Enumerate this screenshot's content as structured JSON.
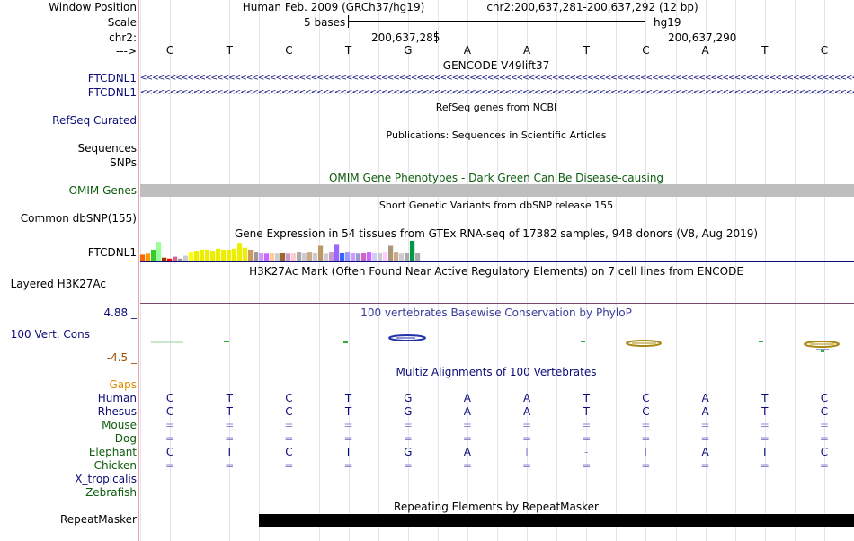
{
  "window_position": {
    "label": "Window Position",
    "assembly": "Human Feb. 2009 (GRCh37/hg19)",
    "range": "chr2:200,637,281-200,637,292 (12 bp)"
  },
  "scale": {
    "label": "Scale",
    "bases_label": "5 bases",
    "db": "hg19"
  },
  "chrom": {
    "label": "chr2:",
    "pos1": "200,637,285",
    "pos2": "200,637,290"
  },
  "strand_label": "--->",
  "bases": [
    "C",
    "T",
    "C",
    "T",
    "G",
    "A",
    "A",
    "T",
    "C",
    "A",
    "T",
    "C"
  ],
  "gencode": {
    "title": "GENCODE V49lift37",
    "tracks": [
      "FTCDNL1",
      "FTCDNL1"
    ],
    "arrow_glyph": "<"
  },
  "refseq": {
    "label": "RefSeq Curated",
    "title": "RefSeq genes from NCBI"
  },
  "publications": {
    "title": "Publications: Sequences in Scientific Articles",
    "label": "Sequences"
  },
  "snps": {
    "label": "SNPs"
  },
  "omim": {
    "title": "OMIM Gene Phenotypes - Dark Green Can Be Disease-causing",
    "label": "OMIM Genes"
  },
  "dbsnp": {
    "title": "Short Genetic Variants from dbSNP release 155",
    "label": "Common dbSNP(155)"
  },
  "gtex": {
    "title": "Gene Expression in 54 tissues from GTEx RNA-seq of 17382 samples, 948 donors (V8, Aug 2019)",
    "label": "FTCDNL1",
    "bars": [
      {
        "v": 0.3,
        "c": "#ff6600"
      },
      {
        "v": 0.35,
        "c": "#ff9900"
      },
      {
        "v": 0.55,
        "c": "#33cc33"
      },
      {
        "v": 0.95,
        "c": "#99ff99"
      },
      {
        "v": 0.15,
        "c": "#993300"
      },
      {
        "v": 0.1,
        "c": "#ff0000"
      },
      {
        "v": 0.2,
        "c": "#cc6699"
      },
      {
        "v": 0.1,
        "c": "#999999"
      },
      {
        "v": 0.25,
        "c": "#cccccc"
      },
      {
        "v": 0.45,
        "c": "#ffff00"
      },
      {
        "v": 0.5,
        "c": "#eeee00"
      },
      {
        "v": 0.55,
        "c": "#eeee00"
      },
      {
        "v": 0.55,
        "c": "#eeee00"
      },
      {
        "v": 0.5,
        "c": "#eeee00"
      },
      {
        "v": 0.6,
        "c": "#eeee00"
      },
      {
        "v": 0.55,
        "c": "#eeee00"
      },
      {
        "v": 0.55,
        "c": "#eeee00"
      },
      {
        "v": 0.6,
        "c": "#eeee00"
      },
      {
        "v": 0.9,
        "c": "#eeee00"
      },
      {
        "v": 0.65,
        "c": "#eeee00"
      },
      {
        "v": 0.55,
        "c": "#cc9966"
      },
      {
        "v": 0.45,
        "c": "#999999"
      },
      {
        "v": 0.4,
        "c": "#cc99ff"
      },
      {
        "v": 0.35,
        "c": "#cc66ff"
      },
      {
        "v": 0.4,
        "c": "#ffcc99"
      },
      {
        "v": 0.35,
        "c": "#cccccc"
      },
      {
        "v": 0.4,
        "c": "#996633"
      },
      {
        "v": 0.35,
        "c": "#cc99cc"
      },
      {
        "v": 0.4,
        "c": "#ffcccc"
      },
      {
        "v": 0.45,
        "c": "#aaaaaa"
      },
      {
        "v": 0.4,
        "c": "#cccccc"
      },
      {
        "v": 0.45,
        "c": "#ccaa88"
      },
      {
        "v": 0.4,
        "c": "#cccccc"
      },
      {
        "v": 0.75,
        "c": "#bb9966"
      },
      {
        "v": 0.35,
        "c": "#cccccc"
      },
      {
        "v": 0.45,
        "c": "#cc99cc"
      },
      {
        "v": 0.8,
        "c": "#9966ff"
      },
      {
        "v": 0.4,
        "c": "#3366ff"
      },
      {
        "v": 0.45,
        "c": "#9999ff"
      },
      {
        "v": 0.4,
        "c": "#cc99ff"
      },
      {
        "v": 0.35,
        "c": "#9999cc"
      },
      {
        "v": 0.4,
        "c": "#cc66cc"
      },
      {
        "v": 0.45,
        "c": "#cc66ff"
      },
      {
        "v": 0.4,
        "c": "#ccccff"
      },
      {
        "v": 0.4,
        "c": "#cccccc"
      },
      {
        "v": 0.45,
        "c": "#ffccff"
      },
      {
        "v": 0.75,
        "c": "#aa9977"
      },
      {
        "v": 0.45,
        "c": "#ccaa88"
      },
      {
        "v": 0.35,
        "c": "#cccccc"
      },
      {
        "v": 0.4,
        "c": "#aaaaaa"
      },
      {
        "v": 1.0,
        "c": "#009944"
      },
      {
        "v": 0.4,
        "c": "#aaaaaa"
      }
    ]
  },
  "h3k27ac": {
    "title": "H3K27Ac Mark (Often Found Near Active Regulatory Elements) on 7 cell lines from ENCODE",
    "label": "Layered H3K27Ac"
  },
  "phylop": {
    "title": "100 vertebrates Basewise Conservation by PhyloP",
    "label": "100 Vert. Cons",
    "ymax": "4.88 _",
    "ymin": "-4.5 _"
  },
  "multiz": {
    "title": "Multiz Alignments of 100 Vertebrates",
    "gaps_label": "Gaps",
    "species": [
      {
        "name": "Human",
        "color": "#0c0c78",
        "row": [
          "C",
          "T",
          "C",
          "T",
          "G",
          "A",
          "A",
          "T",
          "C",
          "A",
          "T",
          "C"
        ]
      },
      {
        "name": "Rhesus",
        "color": "#0c0c78",
        "row": [
          "C",
          "T",
          "C",
          "T",
          "G",
          "A",
          "A",
          "T",
          "C",
          "A",
          "T",
          "C"
        ]
      },
      {
        "name": "Mouse",
        "color": "#0c5c0c",
        "row": [
          "=",
          "=",
          "=",
          "=",
          "=",
          "=",
          "=",
          "=",
          "=",
          "=",
          "=",
          "="
        ]
      },
      {
        "name": "Dog",
        "color": "#0c5c0c",
        "row": [
          "=",
          "=",
          "=",
          "=",
          "=",
          "=",
          "=",
          "=",
          "=",
          "=",
          "=",
          "="
        ]
      },
      {
        "name": "Elephant",
        "color": "#0c5c0c",
        "row": [
          "C",
          "T",
          "C",
          "T",
          "G",
          "A",
          "T",
          "-",
          "T",
          "A",
          "T",
          "C"
        ]
      },
      {
        "name": "Chicken",
        "color": "#0c5c0c",
        "row": [
          "=",
          "=",
          "=",
          "=",
          "=",
          "=",
          "=",
          "=",
          "=",
          "=",
          "=",
          "="
        ]
      },
      {
        "name": "X_tropicalis",
        "color": "#0c0c78",
        "row": [
          "",
          "",
          "",
          "",
          "",
          "",
          "",
          "",
          "",
          "",
          "",
          ""
        ]
      },
      {
        "name": "Zebrafish",
        "color": "#0c5c0c",
        "row": [
          "",
          "",
          "",
          "",
          "",
          "",
          "",
          "",
          "",
          "",
          "",
          ""
        ]
      }
    ]
  },
  "repeatmasker": {
    "title": "Repeating Elements by RepeatMasker",
    "label": "RepeatMasker"
  },
  "colors": {
    "navy": "#0c0c78",
    "green": "#0c5c0c",
    "gaps": "#e08c00",
    "phylop_neg": "#a05000",
    "omim_bar": "#bebebe",
    "divider": "#e8a6a6",
    "grid": "#e3e3f3"
  }
}
